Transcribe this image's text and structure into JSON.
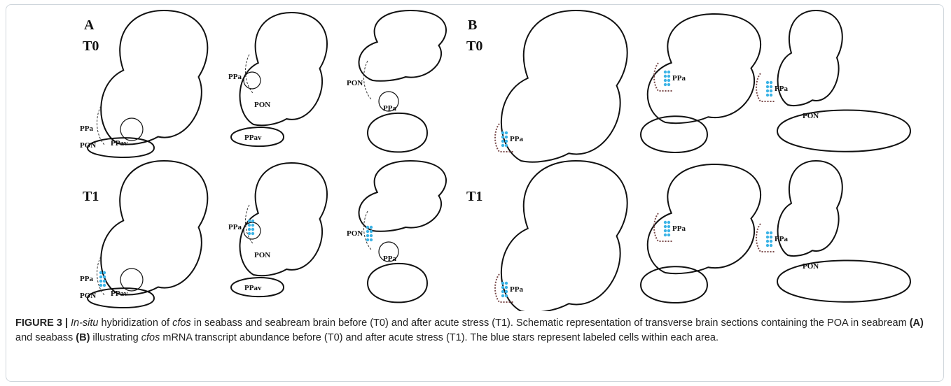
{
  "panels": [
    {
      "label": "A",
      "rows": [
        {
          "time": "T0",
          "sections": [
            {
              "labels": [
                "PPa",
                "PON",
                "PPav"
              ]
            },
            {
              "labels": [
                "PPa",
                "PON",
                "PPav"
              ]
            },
            {
              "labels": [
                "PON",
                "PPa"
              ]
            }
          ]
        },
        {
          "time": "T1",
          "sections": [
            {
              "labels": [
                "PPa",
                "PON",
                "PPav"
              ]
            },
            {
              "labels": [
                "PPa",
                "PON",
                "PPav"
              ]
            },
            {
              "labels": [
                "PON",
                "PPa"
              ]
            }
          ]
        }
      ]
    },
    {
      "label": "B",
      "rows": [
        {
          "time": "T0",
          "sections": [
            {
              "labels": [
                "PPa"
              ]
            },
            {
              "labels": [
                "PPa"
              ]
            },
            {
              "labels": [
                "PPa",
                "PON"
              ]
            }
          ]
        },
        {
          "time": "T1",
          "sections": [
            {
              "labels": [
                "PPa"
              ]
            },
            {
              "labels": [
                "PPa"
              ]
            },
            {
              "labels": [
                "PPa",
                "PON"
              ]
            }
          ]
        }
      ]
    }
  ],
  "caption": [
    "FIGURE 3 | ",
    "In-situ",
    " hybridization of ",
    "cfos",
    " in seabass and seabream brain before (T0) and after acute stress (T1). Schematic representation of transverse brain sections containing the POA in seabream ",
    "(A)",
    " and seabass ",
    "(B)",
    " illustrating ",
    "cfos",
    " mRNA transcript abundance before (T0) and after acute stress (T1). The blue stars represent labeled cells within each area."
  ]
}
